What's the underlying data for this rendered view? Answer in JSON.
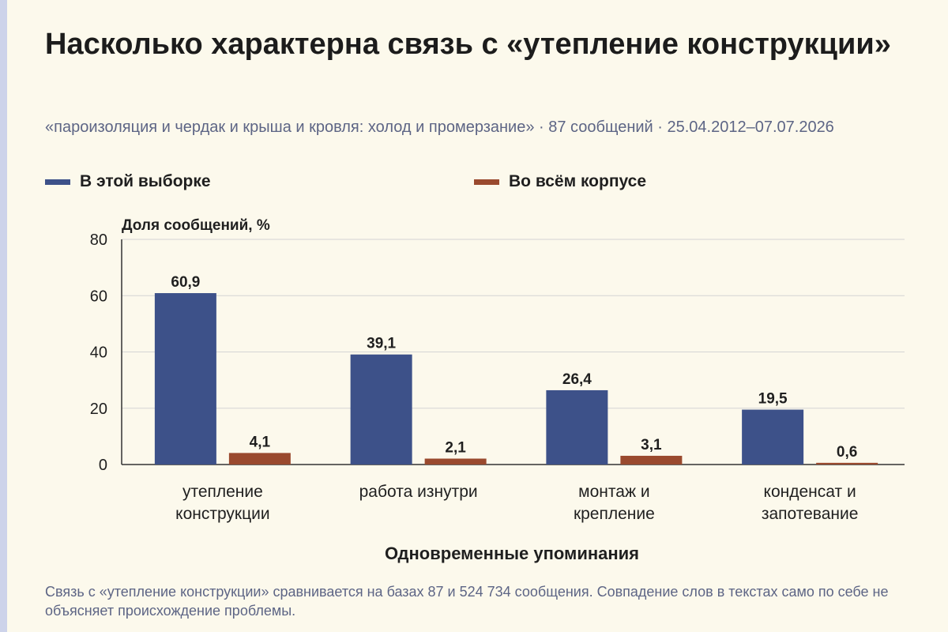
{
  "title": "Насколько характерна связь с «утепление конструкции»",
  "subtitle": "«пароизоляция и чердак и крыша и кровля: холод и промерзание» · 87 сообщений · 25.04.2012–07.07.2026",
  "footnote": "Связь с «утепление конструкции» сравнивается на базах 87 и 524 734 сообщения. Совпадение слов в текстах само по себе не объясняет происхождение проблемы.",
  "colors": {
    "background": "#fcf9ec",
    "series_sample": "#3d5189",
    "series_corpus": "#9a4a2e",
    "grid": "#d4d4d4",
    "axis": "#333333",
    "subtitle_text": "#5d6585"
  },
  "chart_data": {
    "type": "bar",
    "ylabel": "Доля сообщений, %",
    "xlabel": "Одновременные упоминания",
    "ylim": [
      0,
      80
    ],
    "yticks": [
      0,
      20,
      40,
      60,
      80
    ],
    "grid": true,
    "legend_position": "top",
    "categories": [
      [
        "утепление",
        "конструкции"
      ],
      [
        "работа изнутри"
      ],
      [
        "монтаж и",
        "крепление"
      ],
      [
        "конденсат и",
        "запотевание"
      ]
    ],
    "series": [
      {
        "name": "В этой выборке",
        "color": "#3d5189",
        "values": [
          60.9,
          39.1,
          26.4,
          19.5
        ],
        "labels": [
          "60,9",
          "39,1",
          "26,4",
          "19,5"
        ]
      },
      {
        "name": "Во всём корпусе",
        "color": "#9a4a2e",
        "values": [
          4.1,
          2.1,
          3.1,
          0.6
        ],
        "labels": [
          "4,1",
          "2,1",
          "3,1",
          "0,6"
        ]
      }
    ]
  }
}
